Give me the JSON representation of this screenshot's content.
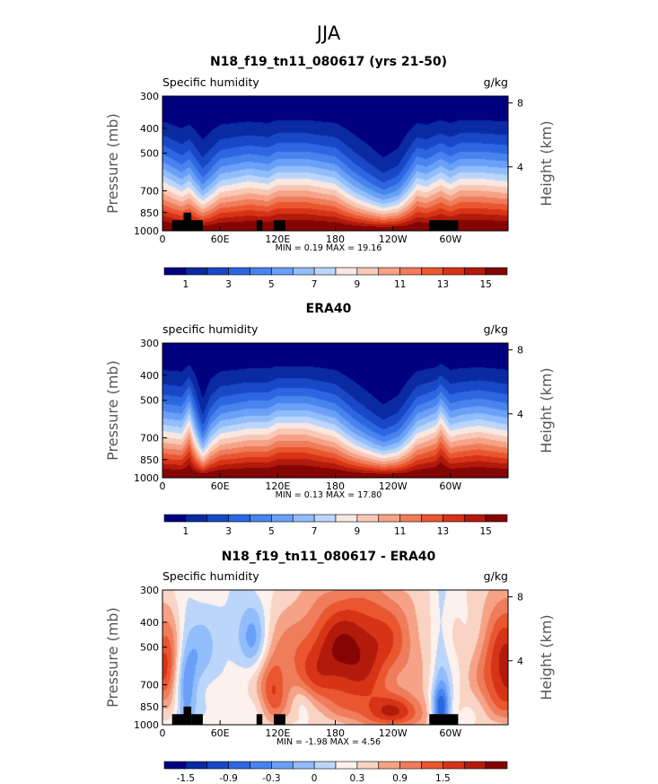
{
  "figure": {
    "title": "JJA"
  },
  "palette": {
    "full": [
      "#01017f",
      "#0a2aa2",
      "#1848c6",
      "#2c66e0",
      "#4883ee",
      "#6aa0f7",
      "#92bdfb",
      "#bcd6fb",
      "#f9e8e2",
      "#f8c8b6",
      "#f5a286",
      "#ef7c5a",
      "#e9562f",
      "#d63317",
      "#b21a0c",
      "#850404"
    ],
    "diff": [
      "#01017f",
      "#0a2aa2",
      "#1848c6",
      "#2c66e0",
      "#4883ee",
      "#6aa0f7",
      "#92bdfb",
      "#bcd6fb",
      "#fcf1ec",
      "#f9d4c4",
      "#f5a286",
      "#ef7c5a",
      "#e9562f",
      "#d63317",
      "#b21a0c",
      "#850404"
    ]
  },
  "chart_data": [
    {
      "type": "heatmap",
      "title": "N18_f19_tn11_080617 (yrs 21-50)",
      "left_label": "Specific humidity",
      "units": "g/kg",
      "ylabel": "Pressure (mb)",
      "ylabel_right": "Height (km)",
      "yticks": [
        "300",
        "400",
        "500",
        "700",
        "850",
        "1000"
      ],
      "ytick_values": [
        300,
        400,
        500,
        700,
        850,
        1000
      ],
      "yticks_right": [
        "8",
        "4"
      ],
      "xticks": [
        "0",
        "60E",
        "120E",
        "180",
        "120W",
        "60W"
      ],
      "xtick_values": [
        0,
        60,
        120,
        180,
        240,
        300
      ],
      "xlim": [
        0,
        360
      ],
      "ylim": [
        1000,
        300
      ],
      "stats": "MIN =    0.19   MAX =   19.16",
      "colorbar_labels": [
        "1",
        "3",
        "5",
        "7",
        "9",
        "11",
        "13",
        "15"
      ],
      "levels": [
        1,
        2,
        3,
        4,
        5,
        6,
        7,
        8,
        9,
        10,
        11,
        12,
        13,
        14,
        15
      ],
      "mode": "full",
      "profile_lon": [
        0,
        20,
        28,
        42,
        60,
        90,
        110,
        120,
        150,
        180,
        200,
        230,
        245,
        265,
        275,
        290,
        300,
        310,
        330,
        360
      ],
      "profile_val": [
        0.2,
        0.0,
        0.1,
        -0.25,
        0.1,
        0.2,
        0.15,
        0.25,
        0.25,
        0.15,
        -0.15,
        -0.55,
        -0.4,
        0.15,
        0.1,
        0.25,
        0.15,
        0.25,
        0.25,
        0.2
      ],
      "terrain_lon": [
        [
          10,
          22
        ],
        [
          22,
          30
        ],
        [
          30,
          42
        ],
        [
          98,
          104
        ],
        [
          116,
          128
        ],
        [
          278,
          308
        ]
      ],
      "terrain_top": [
        910,
        850,
        910,
        910,
        910,
        910
      ]
    },
    {
      "type": "heatmap",
      "title": "ERA40",
      "left_label": "specific humidity",
      "units": "g/kg",
      "ylabel": "Pressure (mb)",
      "ylabel_right": "Height (km)",
      "yticks": [
        "300",
        "400",
        "500",
        "700",
        "850",
        "1000"
      ],
      "ytick_values": [
        300,
        400,
        500,
        700,
        850,
        1000
      ],
      "yticks_right": [
        "8",
        "4"
      ],
      "xticks": [
        "0",
        "60E",
        "120E",
        "180",
        "120W",
        "60W"
      ],
      "xtick_values": [
        0,
        60,
        120,
        180,
        240,
        300
      ],
      "xlim": [
        0,
        360
      ],
      "ylim": [
        1000,
        300
      ],
      "stats": "MIN =    0.13   MAX =   17.80",
      "colorbar_labels": [
        "1",
        "3",
        "5",
        "7",
        "9",
        "11",
        "13",
        "15"
      ],
      "levels": [
        1,
        2,
        3,
        4,
        5,
        6,
        7,
        8,
        9,
        10,
        11,
        12,
        13,
        14,
        15
      ],
      "mode": "full",
      "profile_lon": [
        0,
        20,
        28,
        42,
        50,
        60,
        90,
        110,
        120,
        150,
        180,
        200,
        230,
        245,
        265,
        285,
        290,
        300,
        310,
        330,
        360
      ],
      "profile_val": [
        0.15,
        0.1,
        0.35,
        -0.45,
        -0.1,
        0.1,
        0.2,
        0.2,
        0.3,
        0.3,
        0.15,
        -0.15,
        -0.55,
        -0.4,
        0.1,
        0.25,
        0.4,
        0.15,
        0.2,
        0.25,
        0.15
      ],
      "terrain_lon": [],
      "terrain_top": []
    },
    {
      "type": "heatmap",
      "title": "N18_f19_tn11_080617 - ERA40",
      "left_label": "Specific humidity",
      "units": "g/kg",
      "ylabel": "Pressure (mb)",
      "ylabel_right": "Height (km)",
      "yticks": [
        "300",
        "400",
        "500",
        "700",
        "850",
        "1000"
      ],
      "ytick_values": [
        300,
        400,
        500,
        700,
        850,
        1000
      ],
      "yticks_right": [
        "8",
        "4"
      ],
      "xticks": [
        "0",
        "60E",
        "120E",
        "180",
        "120W",
        "60W"
      ],
      "xtick_values": [
        0,
        60,
        120,
        180,
        240,
        300
      ],
      "xlim": [
        0,
        360
      ],
      "ylim": [
        1000,
        300
      ],
      "stats": "MIN =   -1.98   MAX =    4.56",
      "colorbar_labels": [
        "-1.5",
        "-0.9",
        "-0.3",
        "0",
        "0.3",
        "0.9",
        "1.5"
      ],
      "levels": [
        -2.1,
        -1.8,
        -1.5,
        -1.2,
        -0.9,
        -0.6,
        -0.3,
        0,
        0.3,
        0.6,
        0.9,
        1.2,
        1.5,
        1.8,
        2.1
      ],
      "mode": "diff",
      "blobs": [
        {
          "lon": 185,
          "p": 600,
          "slon": 45,
          "sp": 190,
          "a": 1.7
        },
        {
          "lon": 360,
          "p": 620,
          "slon": 22,
          "sp": 220,
          "a": 1.9
        },
        {
          "lon": 2,
          "p": 600,
          "slon": 12,
          "sp": 170,
          "a": 1.5
        },
        {
          "lon": 240,
          "p": 900,
          "slon": 30,
          "sp": 100,
          "a": 1.4
        },
        {
          "lon": 115,
          "p": 760,
          "slon": 10,
          "sp": 160,
          "a": 1.0
        },
        {
          "lon": 215,
          "p": 430,
          "slon": 40,
          "sp": 120,
          "a": 0.8
        },
        {
          "lon": 95,
          "p": 480,
          "slon": 10,
          "sp": 110,
          "a": -0.7
        },
        {
          "lon": 24,
          "p": 750,
          "slon": 8,
          "sp": 220,
          "a": -1.0
        },
        {
          "lon": 40,
          "p": 560,
          "slon": 12,
          "sp": 120,
          "a": -0.6
        },
        {
          "lon": 290,
          "p": 870,
          "slon": 7,
          "sp": 120,
          "a": -2.0
        },
        {
          "lon": 290,
          "p": 500,
          "slon": 7,
          "sp": 180,
          "a": -0.5
        },
        {
          "lon": 78,
          "p": 440,
          "slon": 18,
          "sp": 90,
          "a": -0.4
        },
        {
          "lon": 145,
          "p": 800,
          "slon": 8,
          "sp": 80,
          "a": -0.4
        }
      ],
      "terrain_lon": [
        [
          10,
          22
        ],
        [
          22,
          30
        ],
        [
          30,
          42
        ],
        [
          98,
          104
        ],
        [
          116,
          128
        ],
        [
          278,
          308
        ]
      ],
      "terrain_top": [
        910,
        850,
        910,
        910,
        910,
        910
      ]
    }
  ]
}
